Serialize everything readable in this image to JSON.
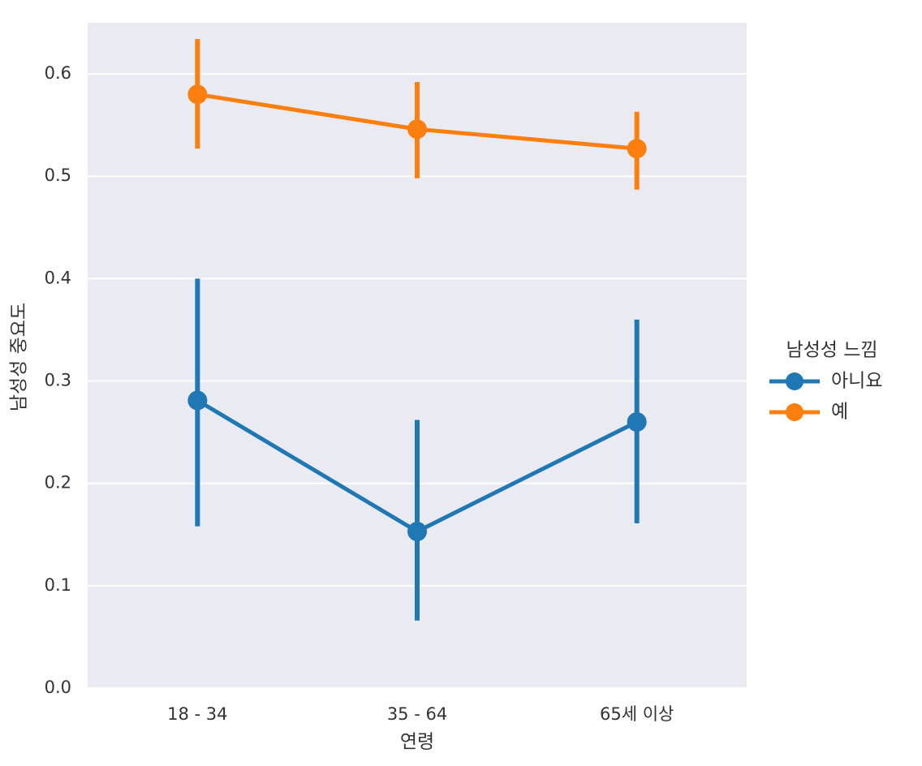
{
  "chart_data": {
    "type": "pointplot",
    "x_label": "연령",
    "y_label": "남성성 중요도",
    "categories": [
      "18 - 34",
      "35 - 64",
      "65세 이상"
    ],
    "legend_title": "남성성 느낌",
    "legend_position": "right",
    "series": [
      {
        "name": "아니요",
        "color": "#1f77b4",
        "values": [
          0.281,
          0.153,
          0.26
        ],
        "ci_low": [
          0.158,
          0.066,
          0.161
        ],
        "ci_high": [
          0.4,
          0.262,
          0.36
        ]
      },
      {
        "name": "예",
        "color": "#ff7f0e",
        "values": [
          0.58,
          0.546,
          0.527
        ],
        "ci_low": [
          0.527,
          0.498,
          0.487
        ],
        "ci_high": [
          0.634,
          0.592,
          0.563
        ]
      }
    ],
    "ylim": [
      0,
      0.65
    ],
    "yticks": [
      {
        "value": 0,
        "label": "0.0"
      },
      0.1,
      0.2,
      0.3,
      0.4,
      0.5,
      0.6
    ],
    "grid": true
  }
}
